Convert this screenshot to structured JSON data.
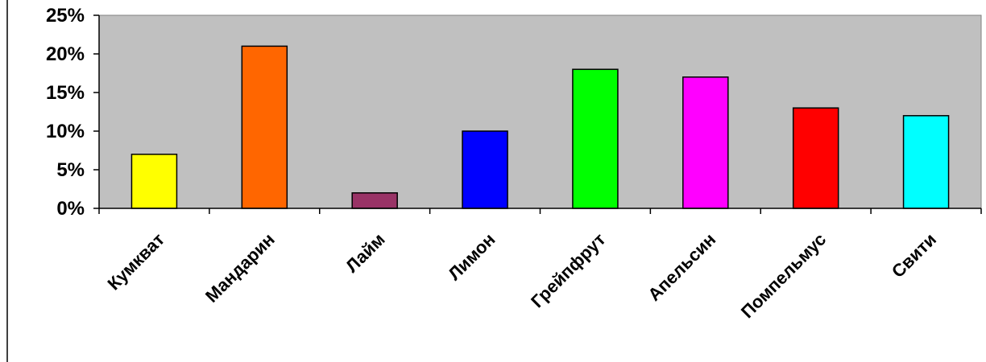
{
  "chart_data": {
    "type": "bar",
    "categories": [
      "Кумкват",
      "Мандарин",
      "Лайм",
      "Лимон",
      "Грейпфрут",
      "Апельсин",
      "Помпельмус",
      "Свити"
    ],
    "values": [
      7,
      21,
      2,
      10,
      18,
      17,
      13,
      12
    ],
    "bar_colors": [
      "#ffff00",
      "#ff6600",
      "#993366",
      "#0000ff",
      "#00ff00",
      "#ff00ff",
      "#ff0000",
      "#00ffff"
    ],
    "plot_background": "#c0c0c0",
    "ylim": [
      0,
      25
    ],
    "yticks": [
      0,
      5,
      10,
      15,
      20,
      25
    ],
    "ytick_labels": [
      "0%",
      "5%",
      "10%",
      "15%",
      "20%",
      "25%"
    ],
    "grid": false,
    "legend": "none"
  }
}
